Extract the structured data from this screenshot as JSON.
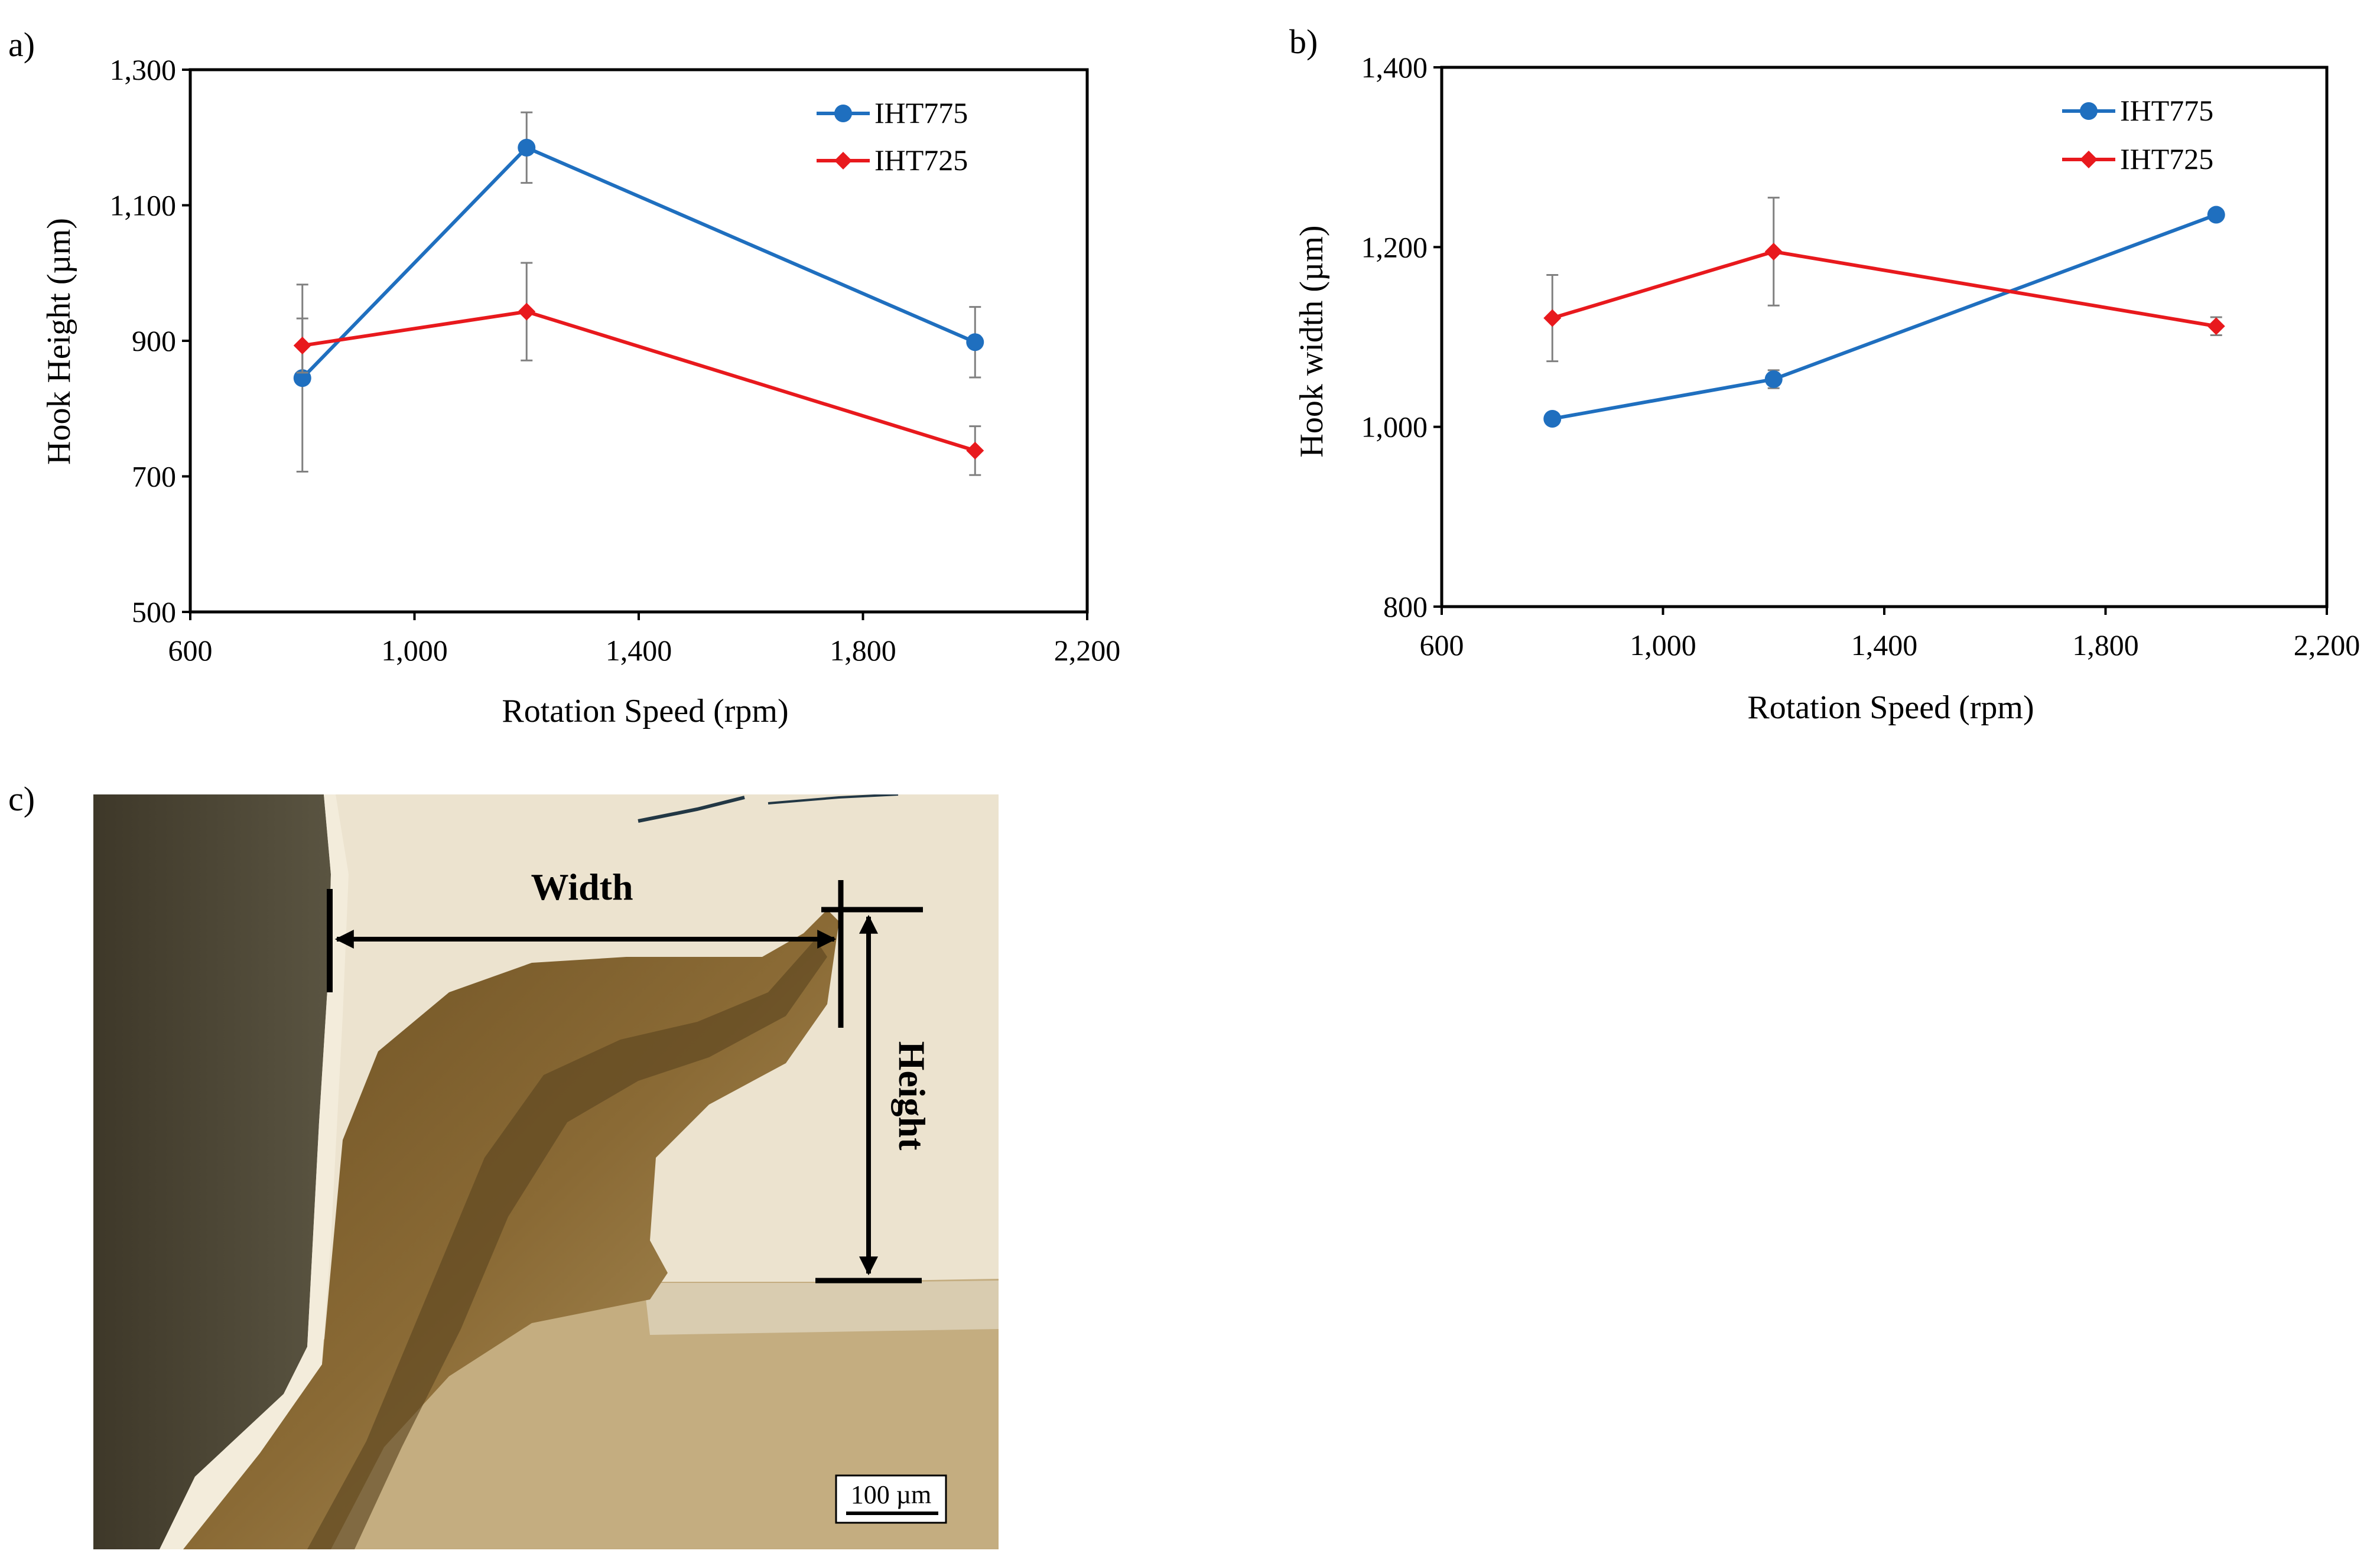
{
  "panel_labels": {
    "a": "a)",
    "b": "b)",
    "c": "c)"
  },
  "colors": {
    "IHT775": "#1f6fbf",
    "IHT725": "#e8191d",
    "axis": "#000000",
    "errorbar": "#808080"
  },
  "chart_data": [
    {
      "type": "line",
      "xlabel": "Rotation Speed (rpm)",
      "ylabel": "Hook Height (µm)",
      "xlim": [
        600,
        2200
      ],
      "ylim": [
        500,
        1300
      ],
      "xticks": [
        600,
        1000,
        1400,
        1800,
        2200
      ],
      "yticks": [
        500,
        700,
        900,
        1100,
        1300
      ],
      "xtick_labels": [
        "600",
        "1,000",
        "1,400",
        "1,800",
        "2,200"
      ],
      "ytick_labels": [
        "500",
        "700",
        "900",
        "1,100",
        "1,300"
      ],
      "legend_position": "top-right",
      "series": [
        {
          "name": "IHT775",
          "marker": "circle",
          "x": [
            800,
            1200,
            2000
          ],
          "y": [
            845,
            1185,
            898
          ],
          "err": [
            138,
            52,
            52
          ]
        },
        {
          "name": "IHT725",
          "marker": "diamond",
          "x": [
            800,
            1200,
            2000
          ],
          "y": [
            893,
            943,
            738
          ],
          "err": [
            40,
            72,
            36
          ]
        }
      ]
    },
    {
      "type": "line",
      "xlabel": "Rotation Speed (rpm)",
      "ylabel": "Hook width (µm)",
      "xlim": [
        600,
        2200
      ],
      "ylim": [
        800,
        1400
      ],
      "xticks": [
        600,
        1000,
        1400,
        1800,
        2200
      ],
      "yticks": [
        800,
        1000,
        1200,
        1400
      ],
      "xtick_labels": [
        "600",
        "1,000",
        "1,400",
        "1,800",
        "2,200"
      ],
      "ytick_labels": [
        "800",
        "1,000",
        "1,200",
        "1,400"
      ],
      "legend_position": "top-right",
      "series": [
        {
          "name": "IHT775",
          "marker": "circle",
          "x": [
            800,
            1200,
            2000
          ],
          "y": [
            1009,
            1053,
            1236
          ],
          "err": [
            0,
            10,
            0
          ]
        },
        {
          "name": "IHT725",
          "marker": "diamond",
          "x": [
            800,
            1200,
            2000
          ],
          "y": [
            1121,
            1195,
            1112
          ],
          "err": [
            48,
            60,
            10
          ]
        }
      ]
    }
  ],
  "micrograph": {
    "width_label": "Width",
    "height_label": "Height",
    "scale_bar_label": "100 µm"
  }
}
